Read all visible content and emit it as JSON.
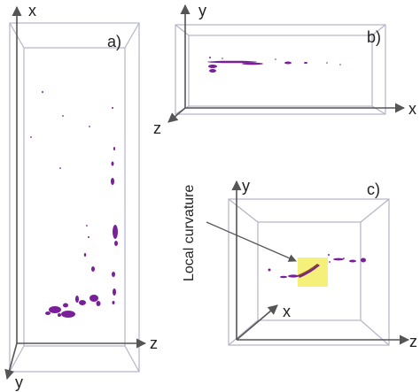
{
  "panels": {
    "a": {
      "label": "a)",
      "axes": {
        "vertical": "x",
        "horizontal": "z",
        "depth": "y"
      }
    },
    "b": {
      "label": "b)",
      "axes": {
        "vertical": "y",
        "horizontal": "x",
        "depth": "z"
      }
    },
    "c": {
      "label": "c)",
      "axes": {
        "vertical": "y",
        "horizontal": "z",
        "depth": "x"
      },
      "annotation": "Local curvature"
    }
  },
  "colors": {
    "box": "#b4b4c8",
    "axis": "#555555",
    "fracture": "#7a1f9a",
    "highlight": "#f5f07a"
  }
}
